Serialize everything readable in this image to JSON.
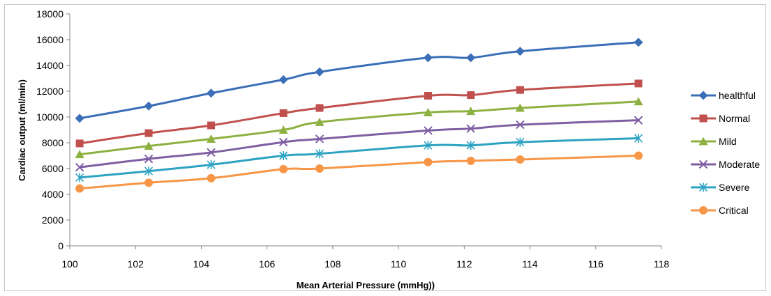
{
  "chart_data": {
    "type": "line",
    "title": "",
    "xlabel": "Mean Arterial Pressure (mmHg))",
    "ylabel": "Cardiac output  (ml/min)",
    "xlim": [
      100,
      118
    ],
    "ylim": [
      0,
      18000
    ],
    "x_ticks": [
      "100",
      "102",
      "104",
      "106",
      "108",
      "110",
      "112",
      "114",
      "116",
      "118"
    ],
    "y_ticks": [
      "0",
      "2000",
      "4000",
      "6000",
      "8000",
      "10000",
      "12000",
      "14000",
      "16000",
      "18000"
    ],
    "grid": false,
    "legend_position": "right",
    "x": [
      100.3,
      102.4,
      104.3,
      106.5,
      107.6,
      110.9,
      112.2,
      113.7,
      117.3
    ],
    "series": [
      {
        "name": "healthful",
        "color": "#3A6FB7",
        "marker": "diamond",
        "values": [
          9900,
          10850,
          11850,
          12900,
          13500,
          14600,
          14600,
          15100,
          15800
        ]
      },
      {
        "name": "Normal",
        "color": "#C0504D",
        "marker": "square",
        "values": [
          7950,
          8750,
          9350,
          10300,
          10700,
          11650,
          11700,
          12100,
          12600
        ]
      },
      {
        "name": "Mild",
        "color": "#8DB141",
        "marker": "triangle",
        "values": [
          7100,
          7750,
          8300,
          9000,
          9600,
          10350,
          10450,
          10700,
          11200
        ]
      },
      {
        "name": "Moderate",
        "color": "#7E5FA3",
        "marker": "x",
        "values": [
          6100,
          6750,
          7250,
          8050,
          8300,
          8950,
          9100,
          9400,
          9750
        ]
      },
      {
        "name": "Severe",
        "color": "#2DA3C2",
        "marker": "asterisk",
        "values": [
          5300,
          5800,
          6300,
          7000,
          7150,
          7800,
          7800,
          8050,
          8350
        ]
      },
      {
        "name": "Critical",
        "color": "#F79646",
        "marker": "circle",
        "values": [
          4450,
          4900,
          5250,
          5950,
          6000,
          6500,
          6600,
          6700,
          7000
        ]
      }
    ]
  }
}
